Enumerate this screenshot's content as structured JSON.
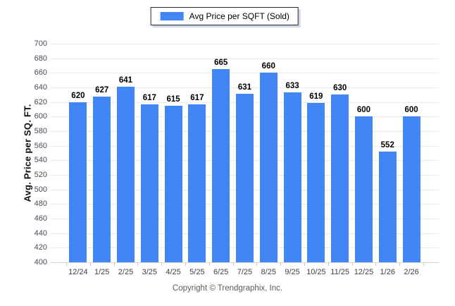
{
  "colors": {
    "bar": "#4285f4",
    "gridline": "#ebebeb",
    "baseline": "#d6d6d6",
    "tick": "#c9c9c9"
  },
  "legend": {
    "label": "Avg Price per SQFT (Sold)"
  },
  "footer": {
    "copyright": "Copyright © Trendgraphix, Inc."
  },
  "chart_data": {
    "type": "bar",
    "title": "",
    "legend": "Avg Price per SQFT (Sold)",
    "legend_position": "top-center",
    "xlabel": "",
    "ylabel": "Avg. Price per SQ. FT.",
    "categories": [
      "12/24",
      "1/25",
      "2/25",
      "3/25",
      "4/25",
      "5/25",
      "6/25",
      "7/25",
      "8/25",
      "9/25",
      "10/25",
      "11/25",
      "12/25",
      "1/26",
      "2/26"
    ],
    "values": [
      620,
      627,
      641,
      617,
      615,
      617,
      665,
      631,
      660,
      633,
      619,
      630,
      600,
      552,
      600
    ],
    "ylim": [
      400,
      700
    ],
    "ytick_step": 20,
    "ytick_labels": [
      "400",
      "420",
      "440",
      "460",
      "480",
      "500",
      "520",
      "540",
      "560",
      "580",
      "600",
      "620",
      "640",
      "660",
      "680",
      "700"
    ],
    "grid": "horizontal"
  }
}
